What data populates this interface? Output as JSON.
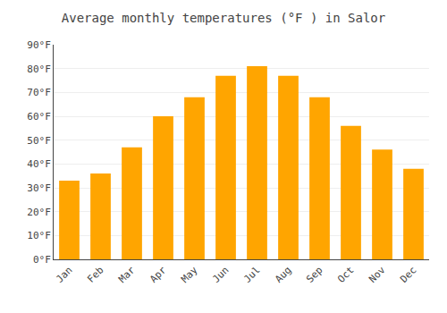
{
  "chart_data": {
    "type": "bar",
    "title": "Average monthly temperatures (°F ) in Salor",
    "categories": [
      "Jan",
      "Feb",
      "Mar",
      "Apr",
      "May",
      "Jun",
      "Jul",
      "Aug",
      "Sep",
      "Oct",
      "Nov",
      "Dec"
    ],
    "values": [
      33,
      36,
      47,
      60,
      68,
      77,
      81,
      77,
      68,
      56,
      46,
      38
    ],
    "color": "#FFA500",
    "ylim": [
      0,
      90
    ],
    "yticks": [
      {
        "value": 0,
        "label": "0°F"
      },
      {
        "value": 10,
        "label": "10°F"
      },
      {
        "value": 20,
        "label": "20°F"
      },
      {
        "value": 30,
        "label": "30°F"
      },
      {
        "value": 40,
        "label": "40°F"
      },
      {
        "value": 50,
        "label": "50°F"
      },
      {
        "value": 60,
        "label": "60°F"
      },
      {
        "value": 70,
        "label": "70°F"
      },
      {
        "value": 80,
        "label": "80°F"
      },
      {
        "value": 90,
        "label": "90°F"
      }
    ],
    "grid": true
  }
}
